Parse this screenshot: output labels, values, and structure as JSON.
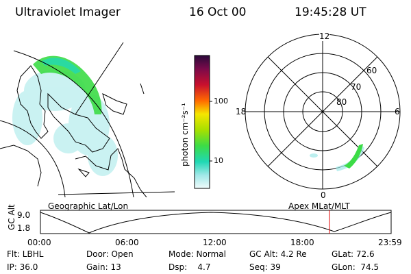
{
  "header": {
    "title": "Ultraviolet Imager",
    "date": "16 Oct 00",
    "time": "19:45:28 UT"
  },
  "colorbar": {
    "unit_label": "photon cm⁻²s⁻¹",
    "ticks": [
      "100",
      "10"
    ],
    "colors": [
      "#2a0a3a",
      "#7a0a4a",
      "#c8102e",
      "#ff6a00",
      "#ffb000",
      "#f5e600",
      "#a8e000",
      "#3cdc46",
      "#20d8b4",
      "#a0e8e8",
      "#f0fbfb"
    ]
  },
  "polar": {
    "mlt_labels": [
      "12",
      "6",
      "0",
      "18"
    ],
    "lat_labels": [
      "60",
      "70",
      "80"
    ]
  },
  "timeline": {
    "left_label": "Geographic Lat/Lon",
    "right_label": "Apex MLat/MLT",
    "axis_label": "GC Alt",
    "y_ticks": [
      "9.0",
      "1.8"
    ],
    "x_ticks": [
      "00:00",
      "06:00",
      "12:00",
      "18:00",
      "23:59"
    ],
    "current_time_fraction": 0.824
  },
  "footer": {
    "rows": [
      [
        "Flt: LBHL",
        "Door: Open",
        "Mode: Normal",
        "GC Alt: 4.2 Re",
        "GLat: 72.6"
      ],
      [
        "IP: 36.0",
        "Gain: 13",
        "Dsp:    4.7",
        "Seq: 39",
        "GLon:  74.5"
      ]
    ]
  }
}
